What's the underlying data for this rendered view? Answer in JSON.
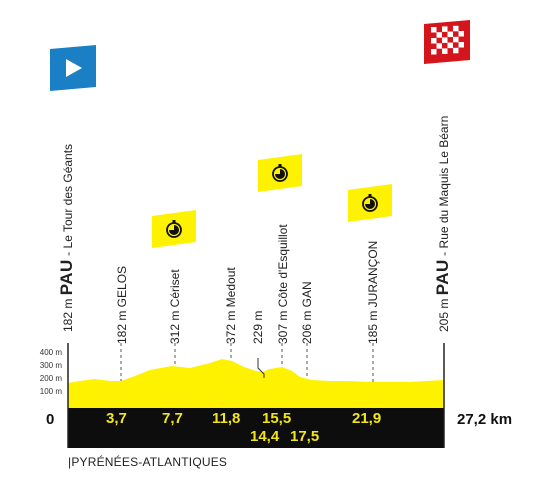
{
  "start": {
    "altitude": "182 m",
    "city": "PAU",
    "place": "Le Tour des Géants",
    "km": "0"
  },
  "finish": {
    "altitude": "205 m",
    "city": "PAU",
    "place": "Rue du Maquis Le Béarn",
    "km": "27,2 km"
  },
  "waypoints": [
    {
      "label": "182 m GELOS",
      "km_label": "3,7"
    },
    {
      "label": "312 m Cériset",
      "km_label": "7,7",
      "timing": true
    },
    {
      "label": "372 m Medout",
      "km_label": "11,8"
    },
    {
      "label": "229 m",
      "km_label": "14,4"
    },
    {
      "label": "307 m Côte d'Esquillot",
      "km_label": "15,5",
      "timing": true
    },
    {
      "label": "206 m GAN",
      "km_label": "17,5"
    },
    {
      "label": "185 m JURANÇON",
      "km_label": "21,9",
      "timing": true
    }
  ],
  "altitude_scale": [
    "400 m",
    "300 m",
    "200 m",
    "100 m"
  ],
  "region": "|PYRÉNÉES-ATLANTIQUES",
  "colors": {
    "yellow": "#fff200",
    "black": "#0d0d0d",
    "start_flag": "#1a7fc4",
    "finish_flag": "#d4161c"
  },
  "icons": {
    "start": "play-triangle-icon",
    "finish": "checkered-flag-icon",
    "timing": "stopwatch-icon"
  }
}
